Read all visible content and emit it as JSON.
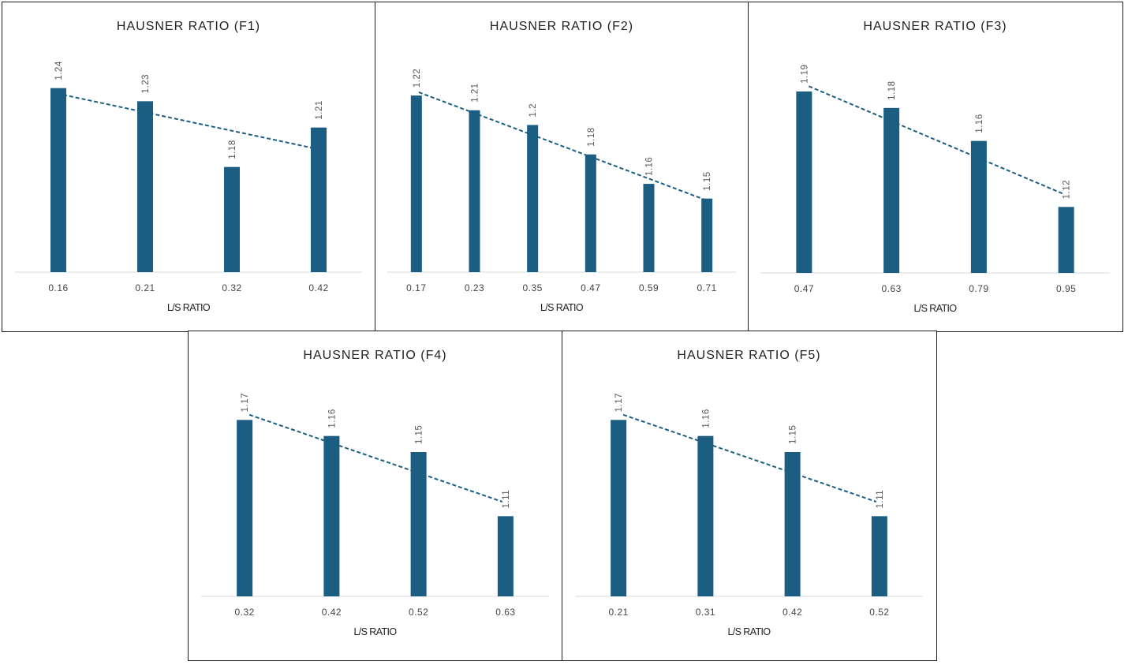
{
  "chart_data": [
    {
      "type": "bar",
      "title": "HAUSNER RATIO (F1)",
      "xlabel": "L/S RATIO",
      "ylabel": "",
      "categories": [
        "0.16",
        "0.21",
        "0.32",
        "0.42"
      ],
      "values": [
        1.24,
        1.23,
        1.18,
        1.21
      ],
      "data_labels": [
        "1.24",
        "1.23",
        "1.18",
        "1.21"
      ],
      "trendline": "linear, dashed",
      "ylim": [
        1.1,
        1.25
      ],
      "grid": false,
      "legend": "none",
      "bar_color": "#1b5e82"
    },
    {
      "type": "bar",
      "title": "HAUSNER RATIO (F2)",
      "xlabel": "L/S RATIO",
      "ylabel": "",
      "categories": [
        "0.17",
        "0.23",
        "0.35",
        "0.47",
        "0.59",
        "0.71"
      ],
      "values": [
        1.22,
        1.21,
        1.2,
        1.18,
        1.16,
        1.15
      ],
      "data_labels": [
        "1.22",
        "1.21",
        "1.2",
        "1.18",
        "1.16",
        "1.15"
      ],
      "trendline": "linear, dashed",
      "ylim": [
        1.1,
        1.234
      ],
      "grid": false,
      "legend": "none",
      "bar_color": "#1b5e82"
    },
    {
      "type": "bar",
      "title": "HAUSNER RATIO (F3)",
      "xlabel": "L/S RATIO",
      "ylabel": "",
      "categories": [
        "0.47",
        "0.63",
        "0.79",
        "0.95"
      ],
      "values": [
        1.19,
        1.18,
        1.16,
        1.12
      ],
      "data_labels": [
        "1.19",
        "1.18",
        "1.16",
        "1.12"
      ],
      "trendline": "linear, dashed",
      "ylim": [
        1.08,
        1.2
      ],
      "grid": false,
      "legend": "none",
      "bar_color": "#1b5e82"
    },
    {
      "type": "bar",
      "title": "HAUSNER RATIO (F4)",
      "xlabel": "L/S RATIO",
      "ylabel": "",
      "categories": [
        "0.32",
        "0.42",
        "0.52",
        "0.63"
      ],
      "values": [
        1.17,
        1.16,
        1.15,
        1.11
      ],
      "data_labels": [
        "1.17",
        "1.16",
        "1.15",
        "1.11"
      ],
      "trendline": "linear, dashed",
      "ylim": [
        1.06,
        1.18
      ],
      "grid": false,
      "legend": "none",
      "bar_color": "#1b5e82"
    },
    {
      "type": "bar",
      "title": "HAUSNER RATIO (F5)",
      "xlabel": "L/S RATIO",
      "ylabel": "",
      "categories": [
        "0.21",
        "0.31",
        "0.42",
        "0.52"
      ],
      "values": [
        1.17,
        1.16,
        1.15,
        1.11
      ],
      "data_labels": [
        "1.17",
        "1.16",
        "1.15",
        "1.11"
      ],
      "trendline": "linear, dashed",
      "ylim": [
        1.06,
        1.18
      ],
      "grid": false,
      "legend": "none",
      "bar_color": "#1b5e82"
    }
  ]
}
